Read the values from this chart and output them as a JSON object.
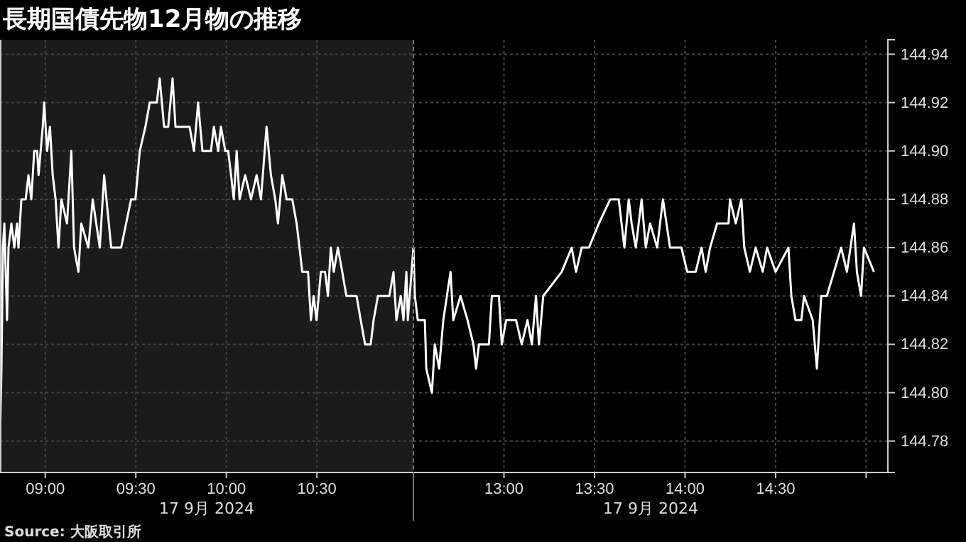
{
  "chart_data": [
    {
      "type": "line",
      "title": "長期国債先物12月物の推移",
      "annotations": [
        "17 9月 2024",
        "Source: 大阪取引所"
      ],
      "xlim": [
        8.75,
        11.033
      ],
      "xticks": [
        {
          "value": 9,
          "label": "09:00"
        },
        {
          "value": 9.5,
          "label": "09:30"
        },
        {
          "value": 10,
          "label": "10:00"
        },
        {
          "value": 10.5,
          "label": "10:30"
        }
      ],
      "ylim": [
        144.767,
        144.946
      ],
      "yticks": [
        144.78,
        144.8,
        144.82,
        144.84,
        144.86,
        144.88,
        144.9,
        144.92,
        144.94
      ],
      "tick_labels": "x",
      "grid": true,
      "bands": [
        {
          "axis": "x",
          "from": 8.75,
          "to": 11.033,
          "color": "#1b1b1b"
        }
      ],
      "series": [
        {
          "color": "#ffffff",
          "x": [
            8.75,
            8.758,
            8.766,
            8.774,
            8.789,
            8.797,
            8.813,
            8.829,
            8.844,
            8.852,
            8.868,
            8.892,
            8.907,
            8.923,
            8.939,
            8.955,
            8.963,
            8.986,
            8.994,
            9.01,
            9.026,
            9.041,
            9.057,
            9.073,
            9.089,
            9.12,
            9.144,
            9.159,
            9.183,
            9.199,
            9.238,
            9.262,
            9.301,
            9.325,
            9.364,
            9.419,
            9.474,
            9.498,
            9.522,
            9.553,
            9.577,
            9.616,
            9.632,
            9.656,
            9.679,
            9.703,
            9.719,
            9.797,
            9.821,
            9.844,
            9.868,
            9.915,
            9.931,
            9.955,
            9.97,
            9.994,
            10.01,
            10.026,
            10.041,
            10.057,
            10.073,
            10.104,
            10.136,
            10.167,
            10.191,
            10.222,
            10.246,
            10.27,
            10.285,
            10.309,
            10.333,
            10.364,
            10.388,
            10.404,
            10.419,
            10.451,
            10.467,
            10.482,
            10.498,
            10.522,
            10.545,
            10.561,
            10.577,
            10.593,
            10.616,
            10.64,
            10.663,
            10.719,
            10.742,
            10.766,
            10.797,
            10.813,
            10.837,
            10.868,
            10.9,
            10.923,
            10.939,
            10.963,
            10.978,
            10.994,
            11.002,
            11.033
          ],
          "values": [
            144.78,
            144.81,
            144.86,
            144.87,
            144.83,
            144.86,
            144.87,
            144.86,
            144.87,
            144.86,
            144.88,
            144.88,
            144.89,
            144.88,
            144.9,
            144.9,
            144.89,
            144.91,
            144.92,
            144.9,
            144.91,
            144.89,
            144.88,
            144.86,
            144.88,
            144.87,
            144.9,
            144.86,
            144.85,
            144.87,
            144.86,
            144.88,
            144.86,
            144.89,
            144.86,
            144.86,
            144.88,
            144.88,
            144.9,
            144.91,
            144.92,
            144.92,
            144.93,
            144.91,
            144.91,
            144.93,
            144.91,
            144.91,
            144.9,
            144.92,
            144.9,
            144.9,
            144.91,
            144.9,
            144.91,
            144.9,
            144.9,
            144.89,
            144.88,
            144.9,
            144.88,
            144.89,
            144.88,
            144.89,
            144.88,
            144.91,
            144.89,
            144.88,
            144.87,
            144.89,
            144.88,
            144.88,
            144.87,
            144.86,
            144.85,
            144.85,
            144.83,
            144.84,
            144.83,
            144.85,
            144.85,
            144.84,
            144.86,
            144.85,
            144.86,
            144.85,
            144.84,
            144.84,
            144.83,
            144.82,
            144.82,
            144.83,
            144.84,
            144.84,
            144.84,
            144.85,
            144.83,
            144.84,
            144.83,
            144.85,
            144.83,
            144.86
          ]
        }
      ]
    },
    {
      "type": "line",
      "annotations": [
        "17 9月 2024"
      ],
      "xlim": [
        12.5,
        15.12
      ],
      "xticks": [
        {
          "value": 13,
          "label": "13:00"
        },
        {
          "value": 13.5,
          "label": "13:30"
        },
        {
          "value": 14,
          "label": "14:00"
        },
        {
          "value": 14.5,
          "label": "14:30"
        },
        {
          "value": 15,
          "label": null
        }
      ],
      "ylim": [
        144.767,
        144.946
      ],
      "yticks": [
        144.78,
        {
          "value": 144.8,
          "label": "144.80"
        },
        144.82,
        144.84,
        144.86,
        144.88,
        {
          "value": 144.9,
          "label": "144.90"
        },
        144.92,
        144.94
      ],
      "grid": true,
      "series": [
        {
          "color": "#ffffff",
          "x": [
            12.5,
            12.508,
            12.524,
            12.563,
            12.571,
            12.602,
            12.618,
            12.642,
            12.665,
            12.705,
            12.72,
            12.76,
            12.799,
            12.831,
            12.846,
            12.862,
            12.917,
            12.933,
            12.972,
            12.988,
            13.012,
            13.067,
            13.098,
            13.13,
            13.154,
            13.177,
            13.193,
            13.217,
            13.319,
            13.374,
            13.398,
            13.429,
            13.469,
            13.524,
            13.587,
            13.634,
            13.665,
            13.689,
            13.705,
            13.728,
            13.76,
            13.783,
            13.807,
            13.846,
            13.878,
            13.917,
            13.98,
            14.012,
            14.059,
            14.091,
            14.114,
            14.138,
            14.177,
            14.24,
            14.248,
            14.28,
            14.311,
            14.327,
            14.358,
            14.39,
            14.429,
            14.453,
            14.5,
            14.571,
            14.587,
            14.61,
            14.642,
            14.657,
            14.705,
            14.728,
            14.752,
            14.783,
            14.862,
            14.894,
            14.933,
            14.949,
            14.972,
            14.988,
            15.043
          ],
          "values": [
            144.86,
            144.84,
            144.83,
            144.83,
            144.81,
            144.8,
            144.82,
            144.81,
            144.83,
            144.85,
            144.83,
            144.84,
            144.83,
            144.82,
            144.81,
            144.82,
            144.82,
            144.84,
            144.84,
            144.82,
            144.83,
            144.83,
            144.82,
            144.83,
            144.82,
            144.84,
            144.82,
            144.84,
            144.85,
            144.86,
            144.85,
            144.86,
            144.86,
            144.87,
            144.88,
            144.88,
            144.86,
            144.88,
            144.87,
            144.86,
            144.88,
            144.86,
            144.87,
            144.86,
            144.88,
            144.86,
            144.86,
            144.85,
            144.85,
            144.86,
            144.85,
            144.86,
            144.87,
            144.87,
            144.88,
            144.87,
            144.88,
            144.86,
            144.85,
            144.86,
            144.85,
            144.86,
            144.85,
            144.86,
            144.84,
            144.83,
            144.83,
            144.84,
            144.83,
            144.81,
            144.84,
            144.84,
            144.86,
            144.85,
            144.87,
            144.85,
            144.84,
            144.86,
            144.85
          ]
        }
      ]
    }
  ]
}
